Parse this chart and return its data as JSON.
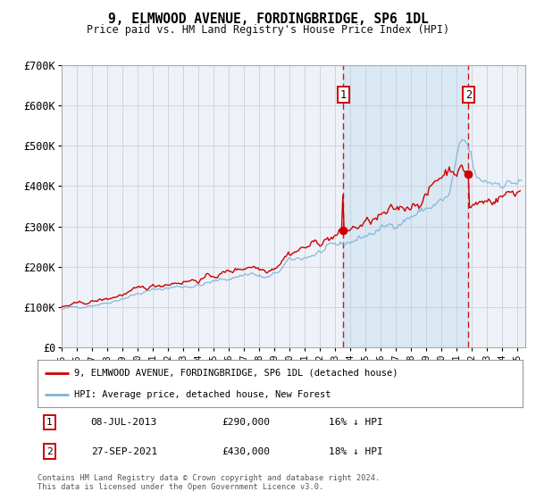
{
  "title": "9, ELMWOOD AVENUE, FORDINGBRIDGE, SP6 1DL",
  "subtitle": "Price paid vs. HM Land Registry's House Price Index (HPI)",
  "ylim": [
    0,
    700000
  ],
  "yticks": [
    0,
    100000,
    200000,
    300000,
    400000,
    500000,
    600000,
    700000
  ],
  "ytick_labels": [
    "£0",
    "£100K",
    "£200K",
    "£300K",
    "£400K",
    "£500K",
    "£600K",
    "£700K"
  ],
  "hpi_color": "#7ab4d8",
  "price_color": "#cc0000",
  "bg_color": "#ffffff",
  "plot_bg_color": "#eef2f8",
  "grid_color": "#c8d0dc",
  "sale1_date": "08-JUL-2013",
  "sale1_price": 290000,
  "sale1_pct": "16%",
  "sale2_date": "27-SEP-2021",
  "sale2_price": 430000,
  "sale2_pct": "18%",
  "legend_line1": "9, ELMWOOD AVENUE, FORDINGBRIDGE, SP6 1DL (detached house)",
  "legend_line2": "HPI: Average price, detached house, New Forest",
  "footer": "Contains HM Land Registry data © Crown copyright and database right 2024.\nThis data is licensed under the Open Government Licence v3.0.",
  "sale1_x": 2013.52,
  "sale2_x": 2021.75,
  "xmin": 1995.0,
  "xmax": 2025.5
}
